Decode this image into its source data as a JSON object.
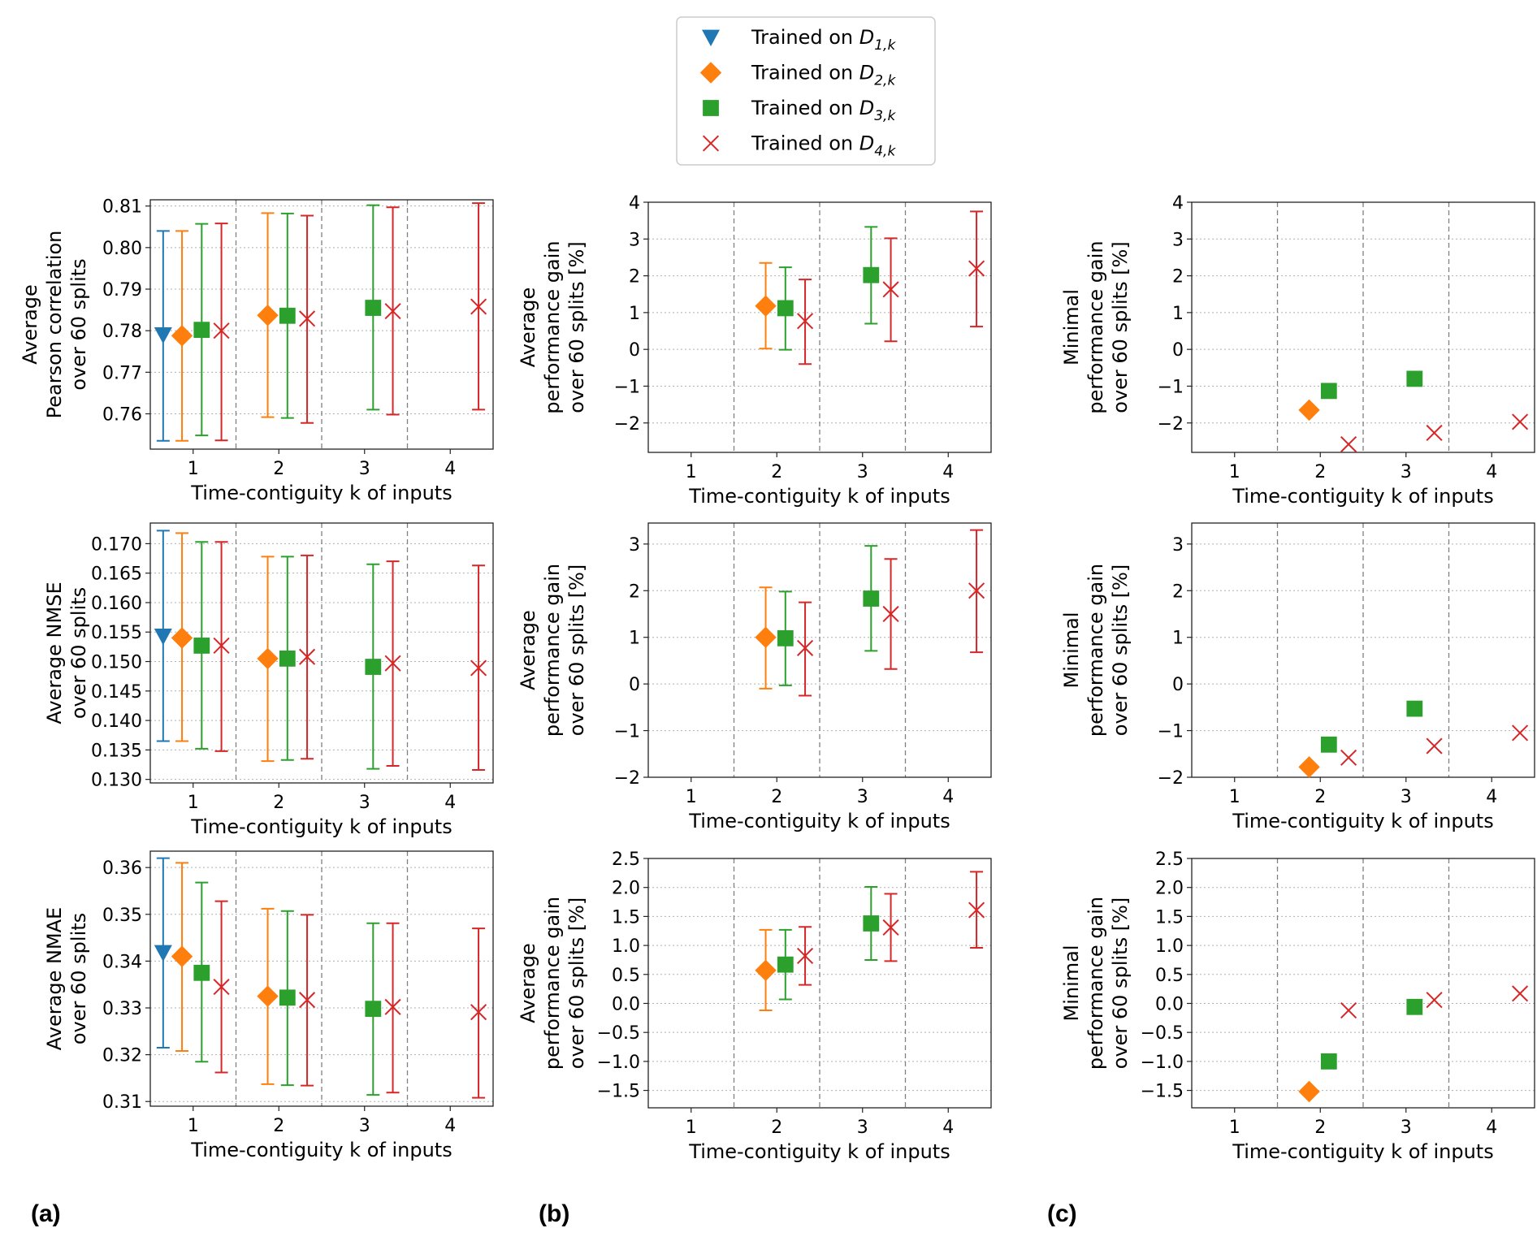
{
  "colors": {
    "D1": "#1f77b4",
    "D2": "#ff7f0e",
    "D3": "#2ca02c",
    "D4": "#d62728"
  },
  "legend": [
    {
      "key": "D1",
      "marker": "triangle-down",
      "label": "Trained on ",
      "sub": "1,k"
    },
    {
      "key": "D2",
      "marker": "diamond",
      "label": "Trained on ",
      "sub": "2,k"
    },
    {
      "key": "D3",
      "marker": "square",
      "label": "Trained on ",
      "sub": "3,k"
    },
    {
      "key": "D4",
      "marker": "x",
      "label": "Trained on ",
      "sub": "4,k"
    }
  ],
  "panel_labels": [
    "(a)",
    "(b)",
    "(c)"
  ],
  "chart_data": [
    {
      "id": "a1",
      "type": "scatter",
      "col": 0,
      "row": 0,
      "xlabel": "Time-contiguity k of inputs",
      "ylabel": [
        "Average",
        "Pearson correlation",
        "over 60 splits"
      ],
      "xlim": [
        0.5,
        4.5
      ],
      "ylim": [
        0.7515,
        0.8115
      ],
      "yticks": [
        0.76,
        0.77,
        0.78,
        0.79,
        0.8,
        0.81
      ],
      "ytick_labels": [
        "0.76",
        "0.77",
        "0.78",
        "0.79",
        "0.80",
        "0.81"
      ],
      "xticks": [
        1,
        2,
        3,
        4
      ],
      "series": [
        {
          "key": "D1",
          "points": [
            {
              "x": 0.65,
              "y": 0.779,
              "lo": 0.7535,
              "hi": 0.804
            }
          ]
        },
        {
          "key": "D2",
          "points": [
            {
              "x": 0.87,
              "y": 0.7788,
              "lo": 0.7535,
              "hi": 0.804
            },
            {
              "x": 1.87,
              "y": 0.7837,
              "lo": 0.7592,
              "hi": 0.8083
            }
          ]
        },
        {
          "key": "D3",
          "points": [
            {
              "x": 1.1,
              "y": 0.7802,
              "lo": 0.7548,
              "hi": 0.8057
            },
            {
              "x": 2.1,
              "y": 0.7836,
              "lo": 0.759,
              "hi": 0.8082
            },
            {
              "x": 3.1,
              "y": 0.7855,
              "lo": 0.761,
              "hi": 0.8102
            }
          ]
        },
        {
          "key": "D4",
          "points": [
            {
              "x": 1.33,
              "y": 0.78,
              "lo": 0.7536,
              "hi": 0.8058
            },
            {
              "x": 2.33,
              "y": 0.7829,
              "lo": 0.7578,
              "hi": 0.8077
            },
            {
              "x": 3.33,
              "y": 0.7847,
              "lo": 0.7598,
              "hi": 0.8097
            },
            {
              "x": 4.33,
              "y": 0.7858,
              "lo": 0.761,
              "hi": 0.8107
            }
          ]
        }
      ]
    },
    {
      "id": "b1",
      "type": "scatter",
      "col": 1,
      "row": 0,
      "xlabel": "Time-contiguity k of inputs",
      "ylabel": [
        "Average",
        "performance gain",
        "over 60 splits [%]"
      ],
      "xlim": [
        0.5,
        4.5
      ],
      "ylim": [
        -2.8,
        4.0
      ],
      "yticks": [
        -2,
        -1,
        0,
        1,
        2,
        3,
        4
      ],
      "ytick_labels": [
        "−2",
        "−1",
        "0",
        "1",
        "2",
        "3",
        "4"
      ],
      "xticks": [
        1,
        2,
        3,
        4
      ],
      "series": [
        {
          "key": "D2",
          "points": [
            {
              "x": 1.87,
              "y": 1.18,
              "lo": 0.02,
              "hi": 2.35
            }
          ]
        },
        {
          "key": "D3",
          "points": [
            {
              "x": 2.1,
              "y": 1.12,
              "lo": -0.01,
              "hi": 2.23
            },
            {
              "x": 3.1,
              "y": 2.02,
              "lo": 0.7,
              "hi": 3.33
            }
          ]
        },
        {
          "key": "D4",
          "points": [
            {
              "x": 2.33,
              "y": 0.77,
              "lo": -0.4,
              "hi": 1.9
            },
            {
              "x": 3.33,
              "y": 1.63,
              "lo": 0.22,
              "hi": 3.02
            },
            {
              "x": 4.33,
              "y": 2.2,
              "lo": 0.62,
              "hi": 3.75
            }
          ]
        }
      ]
    },
    {
      "id": "c1",
      "type": "scatter",
      "col": 2,
      "row": 0,
      "xlabel": "Time-contiguity k of inputs",
      "ylabel": [
        "Minimal",
        "performance gain",
        "over 60 splits [%]"
      ],
      "xlim": [
        0.5,
        4.5
      ],
      "ylim": [
        -2.8,
        4.0
      ],
      "yticks": [
        -2,
        -1,
        0,
        1,
        2,
        3,
        4
      ],
      "ytick_labels": [
        "−2",
        "−1",
        "0",
        "1",
        "2",
        "3",
        "4"
      ],
      "xticks": [
        1,
        2,
        3,
        4
      ],
      "series": [
        {
          "key": "D2",
          "points": [
            {
              "x": 1.87,
              "y": -1.65
            }
          ]
        },
        {
          "key": "D3",
          "points": [
            {
              "x": 2.1,
              "y": -1.13
            },
            {
              "x": 3.1,
              "y": -0.8
            }
          ]
        },
        {
          "key": "D4",
          "points": [
            {
              "x": 2.33,
              "y": -2.58
            },
            {
              "x": 3.33,
              "y": -2.27
            },
            {
              "x": 4.33,
              "y": -1.97
            }
          ]
        }
      ]
    },
    {
      "id": "a2",
      "type": "scatter",
      "col": 0,
      "row": 1,
      "xlabel": "Time-contiguity k of inputs",
      "ylabel": [
        "Average NMSE",
        "over 60 splits"
      ],
      "xlim": [
        0.5,
        4.5
      ],
      "ylim": [
        0.1294,
        0.1735
      ],
      "yticks": [
        0.13,
        0.135,
        0.14,
        0.145,
        0.15,
        0.155,
        0.16,
        0.165,
        0.17
      ],
      "ytick_labels": [
        "0.130",
        "0.135",
        "0.140",
        "0.145",
        "0.150",
        "0.155",
        "0.160",
        "0.165",
        "0.170"
      ],
      "xticks": [
        1,
        2,
        3,
        4
      ],
      "series": [
        {
          "key": "D1",
          "points": [
            {
              "x": 0.65,
              "y": 0.1543,
              "lo": 0.1365,
              "hi": 0.1722
            }
          ]
        },
        {
          "key": "D2",
          "points": [
            {
              "x": 0.87,
              "y": 0.154,
              "lo": 0.1365,
              "hi": 0.1718
            },
            {
              "x": 1.87,
              "y": 0.1505,
              "lo": 0.1331,
              "hi": 0.1678
            }
          ]
        },
        {
          "key": "D3",
          "points": [
            {
              "x": 1.1,
              "y": 0.1527,
              "lo": 0.1352,
              "hi": 0.1703
            },
            {
              "x": 2.1,
              "y": 0.1505,
              "lo": 0.1333,
              "hi": 0.1678
            },
            {
              "x": 3.1,
              "y": 0.1491,
              "lo": 0.1318,
              "hi": 0.1665
            }
          ]
        },
        {
          "key": "D4",
          "points": [
            {
              "x": 1.33,
              "y": 0.1527,
              "lo": 0.1348,
              "hi": 0.1703
            },
            {
              "x": 2.33,
              "y": 0.1508,
              "lo": 0.1335,
              "hi": 0.168
            },
            {
              "x": 3.33,
              "y": 0.1497,
              "lo": 0.1323,
              "hi": 0.167
            },
            {
              "x": 4.33,
              "y": 0.1489,
              "lo": 0.1316,
              "hi": 0.1663
            }
          ]
        }
      ]
    },
    {
      "id": "b2",
      "type": "scatter",
      "col": 1,
      "row": 1,
      "xlabel": "Time-contiguity k of inputs",
      "ylabel": [
        "Average",
        "performance gain",
        "over 60 splits [%]"
      ],
      "xlim": [
        0.5,
        4.5
      ],
      "ylim": [
        -2.0,
        3.45
      ],
      "yticks": [
        -2,
        -1,
        0,
        1,
        2,
        3
      ],
      "ytick_labels": [
        "−2",
        "−1",
        "0",
        "1",
        "2",
        "3"
      ],
      "xticks": [
        1,
        2,
        3,
        4
      ],
      "series": [
        {
          "key": "D2",
          "points": [
            {
              "x": 1.87,
              "y": 1.0,
              "lo": -0.1,
              "hi": 2.07
            }
          ]
        },
        {
          "key": "D3",
          "points": [
            {
              "x": 2.1,
              "y": 0.98,
              "lo": -0.03,
              "hi": 1.98
            },
            {
              "x": 3.1,
              "y": 1.83,
              "lo": 0.71,
              "hi": 2.96
            }
          ]
        },
        {
          "key": "D4",
          "points": [
            {
              "x": 2.33,
              "y": 0.77,
              "lo": -0.25,
              "hi": 1.75
            },
            {
              "x": 3.33,
              "y": 1.5,
              "lo": 0.32,
              "hi": 2.68
            },
            {
              "x": 4.33,
              "y": 2.0,
              "lo": 0.68,
              "hi": 3.3
            }
          ]
        }
      ]
    },
    {
      "id": "c2",
      "type": "scatter",
      "col": 2,
      "row": 1,
      "xlabel": "Time-contiguity k of inputs",
      "ylabel": [
        "Minimal",
        "performance gain",
        "over 60 splits [%]"
      ],
      "xlim": [
        0.5,
        4.5
      ],
      "ylim": [
        -2.0,
        3.45
      ],
      "yticks": [
        -2,
        -1,
        0,
        1,
        2,
        3
      ],
      "ytick_labels": [
        "−2",
        "−1",
        "0",
        "1",
        "2",
        "3"
      ],
      "xticks": [
        1,
        2,
        3,
        4
      ],
      "series": [
        {
          "key": "D2",
          "points": [
            {
              "x": 1.87,
              "y": -1.78
            }
          ]
        },
        {
          "key": "D3",
          "points": [
            {
              "x": 2.1,
              "y": -1.3
            },
            {
              "x": 3.1,
              "y": -0.53
            }
          ]
        },
        {
          "key": "D4",
          "points": [
            {
              "x": 2.33,
              "y": -1.58
            },
            {
              "x": 3.33,
              "y": -1.33
            },
            {
              "x": 4.33,
              "y": -1.05
            }
          ]
        }
      ]
    },
    {
      "id": "a3",
      "type": "scatter",
      "col": 0,
      "row": 2,
      "xlabel": "Time-contiguity k of inputs",
      "ylabel": [
        "Average NMAE",
        "over 60 splits"
      ],
      "xlim": [
        0.5,
        4.5
      ],
      "ylim": [
        0.309,
        0.3635
      ],
      "yticks": [
        0.31,
        0.32,
        0.33,
        0.34,
        0.35,
        0.36
      ],
      "ytick_labels": [
        "0.31",
        "0.32",
        "0.33",
        "0.34",
        "0.35",
        "0.36"
      ],
      "xticks": [
        1,
        2,
        3,
        4
      ],
      "series": [
        {
          "key": "D1",
          "points": [
            {
              "x": 0.65,
              "y": 0.3418,
              "lo": 0.3215,
              "hi": 0.362
            }
          ]
        },
        {
          "key": "D2",
          "points": [
            {
              "x": 0.87,
              "y": 0.341,
              "lo": 0.3208,
              "hi": 0.361
            },
            {
              "x": 1.87,
              "y": 0.3325,
              "lo": 0.3137,
              "hi": 0.3512
            }
          ]
        },
        {
          "key": "D3",
          "points": [
            {
              "x": 1.1,
              "y": 0.3375,
              "lo": 0.3185,
              "hi": 0.3568
            },
            {
              "x": 2.1,
              "y": 0.3322,
              "lo": 0.3135,
              "hi": 0.3507
            },
            {
              "x": 3.1,
              "y": 0.3298,
              "lo": 0.3114,
              "hi": 0.3481
            }
          ]
        },
        {
          "key": "D4",
          "points": [
            {
              "x": 1.33,
              "y": 0.3345,
              "lo": 0.3162,
              "hi": 0.3528
            },
            {
              "x": 2.33,
              "y": 0.3317,
              "lo": 0.3134,
              "hi": 0.3499
            },
            {
              "x": 3.33,
              "y": 0.3302,
              "lo": 0.3119,
              "hi": 0.3481
            },
            {
              "x": 4.33,
              "y": 0.3291,
              "lo": 0.3108,
              "hi": 0.347
            }
          ]
        }
      ]
    },
    {
      "id": "b3",
      "type": "scatter",
      "col": 1,
      "row": 2,
      "xlabel": "Time-contiguity k of inputs",
      "ylabel": [
        "Average",
        "performance gain",
        "over 60 splits [%]"
      ],
      "xlim": [
        0.5,
        4.5
      ],
      "ylim": [
        -1.8,
        2.5
      ],
      "yticks": [
        -1.5,
        -1.0,
        -0.5,
        0.0,
        0.5,
        1.0,
        1.5,
        2.0,
        2.5
      ],
      "ytick_labels": [
        "−1.5",
        "−1.0",
        "−0.5",
        "0.0",
        "0.5",
        "1.0",
        "1.5",
        "2.0",
        "2.5"
      ],
      "xticks": [
        1,
        2,
        3,
        4
      ],
      "series": [
        {
          "key": "D2",
          "points": [
            {
              "x": 1.87,
              "y": 0.57,
              "lo": -0.12,
              "hi": 1.27
            }
          ]
        },
        {
          "key": "D3",
          "points": [
            {
              "x": 2.1,
              "y": 0.67,
              "lo": 0.07,
              "hi": 1.27
            },
            {
              "x": 3.1,
              "y": 1.38,
              "lo": 0.75,
              "hi": 2.01
            }
          ]
        },
        {
          "key": "D4",
          "points": [
            {
              "x": 2.33,
              "y": 0.82,
              "lo": 0.32,
              "hi": 1.32
            },
            {
              "x": 3.33,
              "y": 1.31,
              "lo": 0.73,
              "hi": 1.89
            },
            {
              "x": 4.33,
              "y": 1.61,
              "lo": 0.96,
              "hi": 2.27
            }
          ]
        }
      ]
    },
    {
      "id": "c3",
      "type": "scatter",
      "col": 2,
      "row": 2,
      "xlabel": "Time-contiguity k of inputs",
      "ylabel": [
        "Minimal",
        "performance gain",
        "over 60 splits [%]"
      ],
      "xlim": [
        0.5,
        4.5
      ],
      "ylim": [
        -1.8,
        2.5
      ],
      "yticks": [
        -1.5,
        -1.0,
        -0.5,
        0.0,
        0.5,
        1.0,
        1.5,
        2.0,
        2.5
      ],
      "ytick_labels": [
        "−1.5",
        "−1.0",
        "−0.5",
        "0.0",
        "0.5",
        "1.0",
        "1.5",
        "2.0",
        "2.5"
      ],
      "xticks": [
        1,
        2,
        3,
        4
      ],
      "series": [
        {
          "key": "D2",
          "points": [
            {
              "x": 1.87,
              "y": -1.52
            }
          ]
        },
        {
          "key": "D3",
          "points": [
            {
              "x": 2.1,
              "y": -1.0
            },
            {
              "x": 3.1,
              "y": -0.06
            }
          ]
        },
        {
          "key": "D4",
          "points": [
            {
              "x": 2.33,
              "y": -0.12
            },
            {
              "x": 3.33,
              "y": 0.06
            },
            {
              "x": 4.33,
              "y": 0.17
            }
          ]
        }
      ]
    }
  ]
}
